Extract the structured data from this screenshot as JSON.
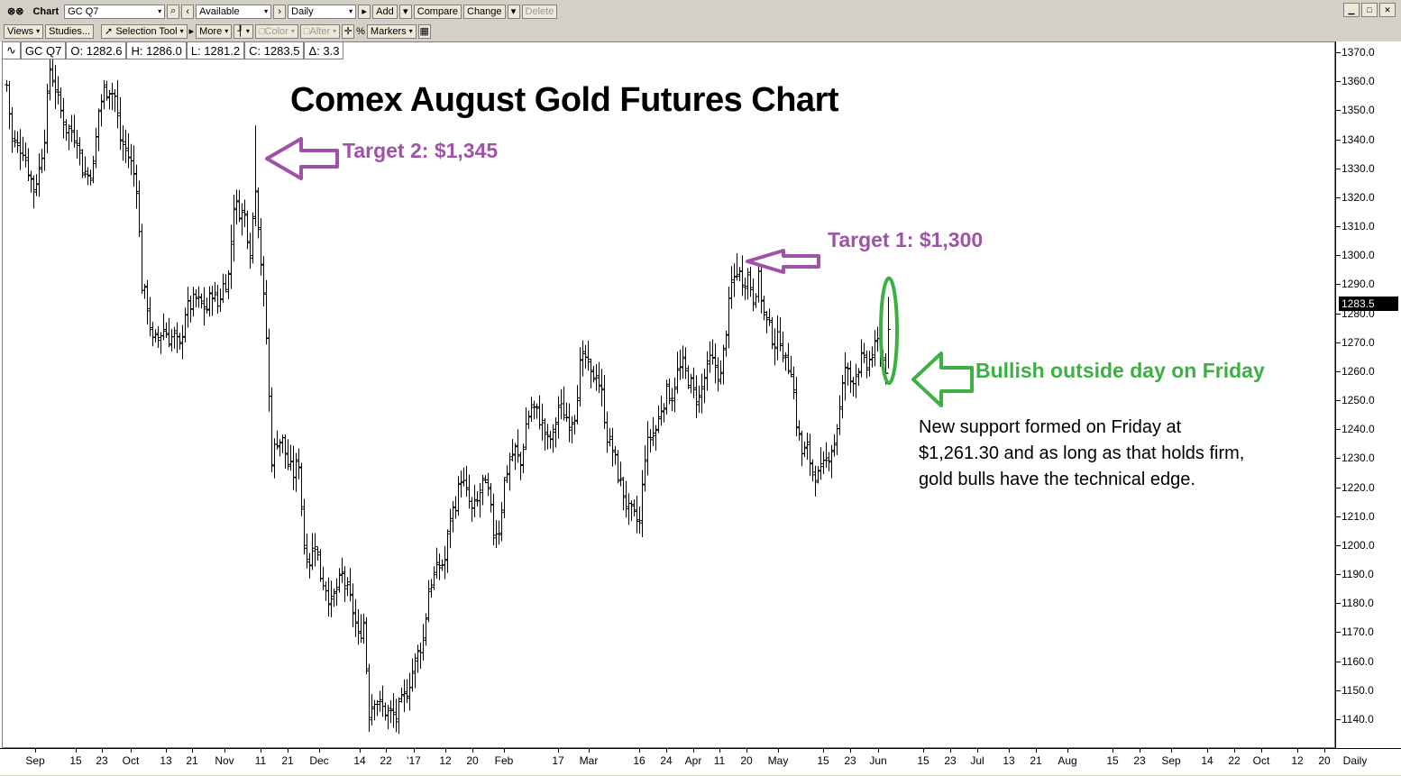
{
  "toolbar": {
    "chart_label": "Chart",
    "symbol": "GC Q7",
    "availability": "Available",
    "period": "Daily",
    "add_label": "Add",
    "compare_label": "Compare",
    "change_label": "Change",
    "delete_label": "Delete",
    "views_label": "Views",
    "studies_label": "Studies...",
    "selection_tool_label": "Selection Tool",
    "more_label": "More",
    "color_label": "Color",
    "alter_label": "Alter",
    "percent_label": "%",
    "markers_label": "Markers"
  },
  "ohlc": {
    "symbol": "GC Q7",
    "open": "O: 1282.6",
    "high": "H: 1286.0",
    "low": "L: 1281.2",
    "close": "C: 1283.5",
    "change": "Δ: 3.3"
  },
  "colors": {
    "purple": "#a052a8",
    "green": "#3cb043"
  },
  "annotations": {
    "title": "Comex August Gold Futures Chart",
    "target2": "Target 2: $1,345",
    "target1": "Target 1: $1,300",
    "bullish": "Bullish outside day on Friday",
    "note_line1": "New support formed on Friday at",
    "note_line2": "$1,261.30 and as long as that holds firm,",
    "note_line3": "gold bulls have the technical edge."
  },
  "chart_data": {
    "type": "bar",
    "title": "Comex August Gold Futures Chart",
    "ylim": [
      1130,
      1373
    ],
    "last_price": "1283.5",
    "y_ticks": [
      "1370.0",
      "1360.0",
      "1350.0",
      "1340.0",
      "1330.0",
      "1320.0",
      "1310.0",
      "1300.0",
      "1290.0",
      "1280.0",
      "1270.0",
      "1260.0",
      "1250.0",
      "1240.0",
      "1230.0",
      "1220.0",
      "1210.0",
      "1200.0",
      "1190.0",
      "1180.0",
      "1170.0",
      "1160.0",
      "1150.0",
      "1140.0"
    ],
    "x_ticks": [
      "Sep",
      "15",
      "23",
      "Oct",
      "13",
      "21",
      "Nov",
      "11",
      "21",
      "Dec",
      "14",
      "22",
      "'17",
      "12",
      "20",
      "Feb",
      "17",
      "Mar",
      "16",
      "24",
      "Apr",
      "11",
      "20",
      "May",
      "15",
      "23",
      "Jun",
      "15",
      "23",
      "Jul",
      "13",
      "21",
      "Aug",
      "15",
      "23",
      "Sep",
      "14",
      "22",
      "Oct",
      "12",
      "20",
      "Daily"
    ],
    "price_path": [
      [
        0,
        1359
      ],
      [
        6,
        1340
      ],
      [
        12,
        1338
      ],
      [
        18,
        1337
      ],
      [
        24,
        1330
      ],
      [
        30,
        1323
      ],
      [
        36,
        1330
      ],
      [
        42,
        1342
      ],
      [
        48,
        1365
      ],
      [
        54,
        1358
      ],
      [
        60,
        1350
      ],
      [
        66,
        1344
      ],
      [
        72,
        1343
      ],
      [
        78,
        1341
      ],
      [
        84,
        1330
      ],
      [
        90,
        1328
      ],
      [
        96,
        1331
      ],
      [
        102,
        1350
      ],
      [
        108,
        1357
      ],
      [
        114,
        1358
      ],
      [
        120,
        1355
      ],
      [
        126,
        1340
      ],
      [
        132,
        1337
      ],
      [
        138,
        1332
      ],
      [
        144,
        1325
      ],
      [
        150,
        1290
      ],
      [
        156,
        1283
      ],
      [
        162,
        1270
      ],
      [
        168,
        1272
      ],
      [
        174,
        1275
      ],
      [
        180,
        1272
      ],
      [
        186,
        1272
      ],
      [
        192,
        1268
      ],
      [
        198,
        1281
      ],
      [
        204,
        1283
      ],
      [
        210,
        1285
      ],
      [
        216,
        1283
      ],
      [
        222,
        1282
      ],
      [
        228,
        1288
      ],
      [
        234,
        1283
      ],
      [
        240,
        1290
      ],
      [
        246,
        1293
      ],
      [
        252,
        1318
      ],
      [
        258,
        1316
      ],
      [
        264,
        1314
      ],
      [
        270,
        1302
      ],
      [
        276,
        1325
      ],
      [
        282,
        1298
      ],
      [
        288,
        1272
      ],
      [
        294,
        1230
      ],
      [
        300,
        1237
      ],
      [
        306,
        1236
      ],
      [
        312,
        1228
      ],
      [
        318,
        1225
      ],
      [
        324,
        1229
      ],
      [
        330,
        1200
      ],
      [
        336,
        1195
      ],
      [
        342,
        1202
      ],
      [
        348,
        1190
      ],
      [
        354,
        1186
      ],
      [
        360,
        1180
      ],
      [
        366,
        1185
      ],
      [
        372,
        1190
      ],
      [
        378,
        1184
      ],
      [
        384,
        1178
      ],
      [
        390,
        1168
      ],
      [
        396,
        1174
      ],
      [
        402,
        1143
      ],
      [
        408,
        1148
      ],
      [
        414,
        1145
      ],
      [
        420,
        1143
      ],
      [
        426,
        1142
      ],
      [
        432,
        1141
      ],
      [
        438,
        1146
      ],
      [
        444,
        1150
      ],
      [
        450,
        1157
      ],
      [
        456,
        1163
      ],
      [
        462,
        1168
      ],
      [
        468,
        1185
      ],
      [
        474,
        1190
      ],
      [
        480,
        1193
      ],
      [
        486,
        1195
      ],
      [
        492,
        1210
      ],
      [
        498,
        1215
      ],
      [
        504,
        1224
      ],
      [
        510,
        1218
      ],
      [
        516,
        1212
      ],
      [
        522,
        1215
      ],
      [
        528,
        1222
      ],
      [
        534,
        1218
      ],
      [
        540,
        1205
      ],
      [
        546,
        1206
      ],
      [
        552,
        1222
      ],
      [
        558,
        1230
      ],
      [
        564,
        1233
      ],
      [
        570,
        1228
      ],
      [
        576,
        1242
      ],
      [
        582,
        1248
      ],
      [
        588,
        1246
      ],
      [
        594,
        1242
      ],
      [
        600,
        1236
      ],
      [
        606,
        1238
      ],
      [
        612,
        1248
      ],
      [
        618,
        1246
      ],
      [
        624,
        1243
      ],
      [
        630,
        1246
      ],
      [
        636,
        1262
      ],
      [
        642,
        1265
      ],
      [
        648,
        1258
      ],
      [
        654,
        1260
      ],
      [
        660,
        1252
      ],
      [
        666,
        1238
      ],
      [
        672,
        1233
      ],
      [
        678,
        1225
      ],
      [
        684,
        1218
      ],
      [
        690,
        1212
      ],
      [
        696,
        1210
      ],
      [
        702,
        1208
      ],
      [
        708,
        1232
      ],
      [
        714,
        1238
      ],
      [
        720,
        1240
      ],
      [
        726,
        1248
      ],
      [
        732,
        1253
      ],
      [
        738,
        1252
      ],
      [
        744,
        1260
      ],
      [
        750,
        1262
      ],
      [
        756,
        1258
      ],
      [
        762,
        1253
      ],
      [
        768,
        1251
      ],
      [
        774,
        1258
      ],
      [
        780,
        1264
      ],
      [
        786,
        1262
      ],
      [
        792,
        1258
      ],
      [
        798,
        1275
      ],
      [
        804,
        1290
      ],
      [
        810,
        1295
      ],
      [
        816,
        1292
      ],
      [
        822,
        1293
      ],
      [
        828,
        1286
      ],
      [
        834,
        1292
      ],
      [
        840,
        1280
      ],
      [
        846,
        1275
      ],
      [
        852,
        1270
      ],
      [
        858,
        1272
      ],
      [
        864,
        1263
      ],
      [
        870,
        1262
      ],
      [
        876,
        1243
      ],
      [
        882,
        1232
      ],
      [
        888,
        1233
      ],
      [
        894,
        1226
      ],
      [
        900,
        1224
      ],
      [
        906,
        1227
      ],
      [
        912,
        1232
      ],
      [
        918,
        1236
      ],
      [
        924,
        1247
      ],
      [
        930,
        1262
      ],
      [
        936,
        1257
      ],
      [
        942,
        1260
      ],
      [
        948,
        1264
      ],
      [
        954,
        1262
      ],
      [
        960,
        1266
      ],
      [
        966,
        1270
      ],
      [
        972,
        1264
      ],
      [
        976,
        1261
      ],
      [
        980,
        1283
      ]
    ],
    "ellipse": {
      "time": 980,
      "price_low": 1259,
      "price_high": 1289
    }
  }
}
